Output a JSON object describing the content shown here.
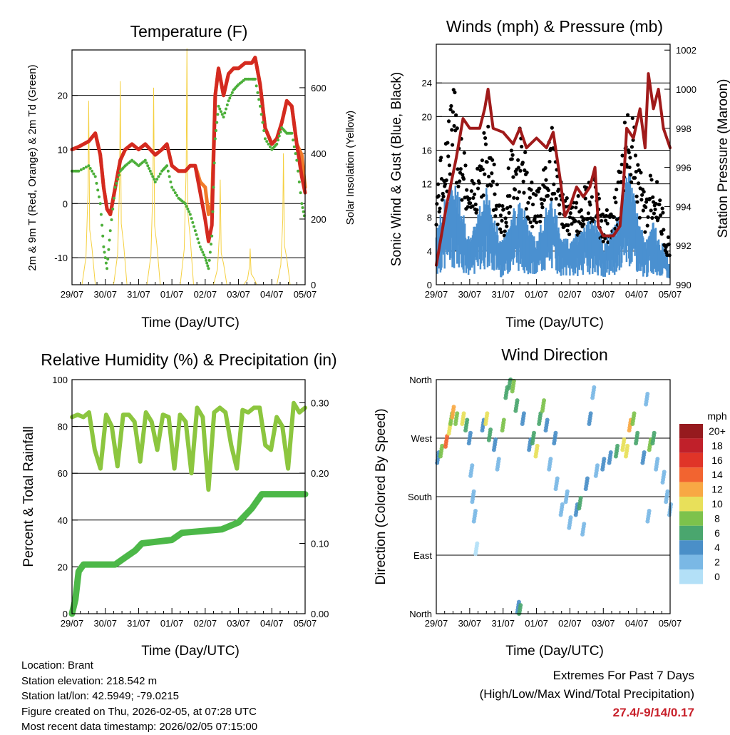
{
  "colors": {
    "t2m": "#d42a20",
    "t9m": "#f07a2a",
    "td": "#4caf3a",
    "solar": "#f5d040",
    "gust": "#000000",
    "wind": "#4a90d0",
    "pressure": "#a01a1a",
    "rh": "#8cc63f",
    "precip": "#4cb848",
    "extremes": "#c8202a"
  },
  "x_tick_labels": [
    "29/07",
    "30/07",
    "31/07",
    "01/07",
    "02/07",
    "03/07",
    "04/07",
    "05/07"
  ],
  "chart_data": [
    {
      "id": "temperature",
      "type": "line",
      "title": "Temperature (F)",
      "xlabel": "Time (Day/UTC)",
      "ylabel": "2m & 9m T (Red, Orange) & 2m Td (Green)",
      "ylabel_right": "Solar Insolation (Yellow)",
      "ylim": [
        -15,
        28.4
      ],
      "ylim_right": [
        0,
        715
      ],
      "yticks": [
        -10,
        0,
        10,
        20
      ],
      "yticks_right": [
        0,
        200,
        400,
        600
      ],
      "grid": true,
      "x": [
        0,
        0.2,
        0.5,
        0.7,
        0.85,
        0.95,
        1.05,
        1.15,
        1.3,
        1.45,
        1.6,
        1.8,
        2.0,
        2.2,
        2.35,
        2.5,
        2.7,
        2.85,
        3.0,
        3.2,
        3.4,
        3.55,
        3.7,
        3.85,
        4.0,
        4.1,
        4.2,
        4.3,
        4.4,
        4.55,
        4.7,
        4.85,
        5.0,
        5.2,
        5.4,
        5.5,
        5.65,
        5.8,
        6.0,
        6.15,
        6.3,
        6.45,
        6.6,
        6.75,
        6.9,
        7.0
      ],
      "series": [
        {
          "name": "2m T",
          "values": [
            10,
            10.5,
            11.5,
            13,
            9,
            3,
            -1,
            -2,
            3,
            8,
            10,
            11,
            10,
            11,
            10,
            9,
            10,
            11,
            7,
            6,
            6,
            7,
            7,
            2,
            -3,
            -7,
            -4,
            20,
            25,
            20,
            24,
            25,
            25,
            26,
            26,
            27,
            22,
            14,
            11,
            12,
            15,
            19,
            18,
            11,
            5,
            2
          ]
        },
        {
          "name": "9m T",
          "values": [
            10,
            10.5,
            11.5,
            13,
            9,
            3,
            -1,
            -2,
            3,
            8,
            10,
            11,
            10,
            11,
            10,
            9,
            10,
            11,
            7,
            6,
            6,
            7,
            7,
            4,
            3,
            -2,
            0,
            20,
            25,
            20,
            24,
            25,
            25,
            26,
            26,
            27,
            22,
            14,
            11,
            12,
            15,
            19,
            18,
            11,
            9,
            3
          ]
        },
        {
          "name": "2m Td",
          "values": [
            6,
            6,
            7,
            5,
            0,
            -8,
            -12,
            -5,
            3,
            6,
            7,
            8,
            7,
            8,
            6,
            4,
            6,
            7,
            3,
            1,
            0,
            -2,
            -5,
            -8,
            -10,
            -12,
            -6,
            12,
            18,
            16,
            19,
            21,
            22,
            23,
            23,
            23,
            18,
            12,
            10,
            11,
            14,
            13,
            13,
            8,
            0,
            -3
          ]
        },
        {
          "name": "Solar Insolation",
          "peak_days": [
            0.5,
            1.45,
            2.45,
            3.45,
            4.45,
            5.35,
            6.35
          ],
          "peak_values": [
            560,
            620,
            600,
            720,
            320,
            110,
            400
          ]
        }
      ]
    },
    {
      "id": "winds",
      "type": "scatter",
      "title": "Winds (mph) & Pressure (mb)",
      "xlabel": "Time (Day/UTC)",
      "ylabel": "Sonic Wind & Gust (Blue, Black)",
      "ylabel_right": "Station Pressure (Maroon)",
      "ylim": [
        0,
        28.6
      ],
      "ylim_right": [
        990,
        1002.3
      ],
      "yticks": [
        0,
        4,
        8,
        12,
        16,
        20,
        24
      ],
      "yticks_right": [
        990,
        992,
        994,
        996,
        998,
        1000,
        1002
      ],
      "grid": true,
      "x": [
        0,
        0.25,
        0.5,
        0.75,
        1.0,
        1.25,
        1.5,
        1.75,
        2.0,
        2.25,
        2.5,
        2.75,
        3.0,
        3.25,
        3.5,
        3.75,
        4.0,
        4.25,
        4.5,
        4.75,
        5.0,
        5.25,
        5.5,
        5.75,
        6.0,
        6.25,
        6.5,
        6.75,
        7.0
      ],
      "series": [
        {
          "name": "Gust",
          "values": [
            10,
            15,
            20,
            16,
            9,
            14,
            17,
            12,
            8,
            14,
            16,
            12,
            9,
            14,
            16,
            10,
            8,
            9,
            10,
            11,
            7,
            8,
            12,
            20,
            14,
            9,
            12,
            8,
            4
          ]
        },
        {
          "name": "Sonic Wind",
          "values": [
            5,
            8,
            10,
            8,
            4,
            7,
            9,
            6,
            4,
            7,
            8,
            6,
            4,
            7,
            8,
            5,
            4,
            5,
            6,
            6,
            4,
            5,
            7,
            11,
            7,
            4,
            6,
            4,
            2
          ]
        },
        {
          "name": "Station Pressure",
          "x": [
            0,
            0.3,
            0.6,
            0.8,
            1.0,
            1.3,
            1.45,
            1.55,
            1.7,
            2.0,
            2.3,
            2.5,
            2.7,
            3.0,
            3.3,
            3.5,
            3.7,
            3.85,
            4.0,
            4.2,
            4.4,
            4.6,
            4.75,
            4.85,
            5.0,
            5.3,
            5.5,
            5.6,
            5.7,
            5.9,
            6.1,
            6.25,
            6.35,
            6.5,
            6.65,
            6.8,
            7.0
          ],
          "values": [
            991,
            994,
            996.5,
            998.5,
            998,
            998,
            999,
            1000,
            998,
            997.8,
            997.2,
            998,
            997,
            997.5,
            997,
            997.8,
            995.5,
            993.5,
            994,
            995,
            994.5,
            995,
            996,
            993,
            992.5,
            992.5,
            993,
            995,
            998,
            997.5,
            999,
            997,
            1000.8,
            999,
            1000,
            998,
            997
          ]
        }
      ]
    },
    {
      "id": "humidity",
      "type": "line",
      "title": "Relative Humidity (%) & Precipitation (in)",
      "xlabel": "Time (Day/UTC)",
      "ylabel": "Percent & Total Rainfall",
      "ylim": [
        0,
        100
      ],
      "ylim_right": [
        0,
        0.333
      ],
      "yticks": [
        0,
        20,
        40,
        60,
        80,
        100
      ],
      "yticks_right": [
        0,
        0.1,
        0.2,
        0.3
      ],
      "yticks_right_labels": [
        "0.00",
        "0.10",
        "0.20",
        "0.30"
      ],
      "grid": true,
      "series": [
        {
          "name": "Relative Humidity",
          "values": [
            84,
            85,
            84,
            86,
            70,
            62,
            85,
            80,
            63,
            85,
            85,
            82,
            65,
            86,
            82,
            70,
            85,
            84,
            62,
            85,
            82,
            60,
            88,
            84,
            53,
            86,
            88,
            86,
            72,
            62,
            87,
            86,
            88,
            88,
            72,
            70,
            84,
            80,
            62,
            90,
            86,
            88
          ]
        },
        {
          "name": "Total Precipitation",
          "x": [
            0,
            0.1,
            0.2,
            0.35,
            1.3,
            1.6,
            1.9,
            2.1,
            3.0,
            3.3,
            4.5,
            5.0,
            5.4,
            5.55,
            5.7,
            7.0
          ],
          "values": [
            0,
            0.02,
            0.06,
            0.07,
            0.07,
            0.08,
            0.09,
            0.1,
            0.105,
            0.115,
            0.12,
            0.13,
            0.15,
            0.16,
            0.17,
            0.17
          ]
        }
      ]
    },
    {
      "id": "wind_direction",
      "type": "scatter",
      "title": "Wind Direction",
      "xlabel": "Time (Day/UTC)",
      "ylabel": "Direction (Colored By Speed)",
      "ylim": [
        0,
        360
      ],
      "yticks": [
        0,
        90,
        180,
        270,
        360
      ],
      "ytick_labels": [
        "North",
        "East",
        "South",
        "West",
        "North"
      ],
      "grid": true,
      "points": [
        [
          0.05,
          240,
          4
        ],
        [
          0.15,
          250,
          8
        ],
        [
          0.3,
          265,
          14
        ],
        [
          0.4,
          285,
          10
        ],
        [
          0.45,
          300,
          9
        ],
        [
          0.5,
          310,
          12
        ],
        [
          0.6,
          300,
          8
        ],
        [
          0.8,
          300,
          10
        ],
        [
          0.9,
          290,
          6
        ],
        [
          1.0,
          270,
          4
        ],
        [
          1.05,
          220,
          3
        ],
        [
          1.1,
          180,
          2
        ],
        [
          1.15,
          150,
          2
        ],
        [
          1.2,
          100,
          1
        ],
        [
          1.4,
          290,
          5
        ],
        [
          1.5,
          300,
          10
        ],
        [
          1.6,
          275,
          6
        ],
        [
          1.75,
          260,
          4
        ],
        [
          1.85,
          230,
          3
        ],
        [
          2.0,
          290,
          8
        ],
        [
          2.1,
          340,
          6
        ],
        [
          2.2,
          355,
          6
        ],
        [
          2.3,
          350,
          8
        ],
        [
          2.4,
          320,
          7
        ],
        [
          2.45,
          10,
          4
        ],
        [
          2.5,
          5,
          6
        ],
        [
          2.6,
          300,
          4
        ],
        [
          2.8,
          260,
          4
        ],
        [
          2.9,
          270,
          6
        ],
        [
          3.0,
          250,
          10
        ],
        [
          3.1,
          300,
          6
        ],
        [
          3.2,
          320,
          8
        ],
        [
          3.3,
          290,
          5
        ],
        [
          3.4,
          230,
          2
        ],
        [
          3.55,
          270,
          4
        ],
        [
          3.6,
          200,
          3
        ],
        [
          3.75,
          160,
          3
        ],
        [
          3.9,
          180,
          3
        ],
        [
          4.0,
          140,
          2
        ],
        [
          4.2,
          160,
          4
        ],
        [
          4.3,
          170,
          6
        ],
        [
          4.4,
          130,
          3
        ],
        [
          4.5,
          200,
          4
        ],
        [
          4.6,
          300,
          4
        ],
        [
          4.7,
          340,
          3
        ],
        [
          4.8,
          220,
          3
        ],
        [
          5.0,
          230,
          4
        ],
        [
          5.2,
          240,
          5
        ],
        [
          5.4,
          250,
          6
        ],
        [
          5.6,
          260,
          11
        ],
        [
          5.7,
          250,
          10
        ],
        [
          5.8,
          290,
          12
        ],
        [
          5.9,
          300,
          8
        ],
        [
          6.0,
          270,
          6
        ],
        [
          6.2,
          240,
          4
        ],
        [
          6.3,
          330,
          3
        ],
        [
          6.35,
          150,
          3
        ],
        [
          6.4,
          260,
          8
        ],
        [
          6.5,
          270,
          6
        ],
        [
          6.6,
          230,
          2
        ],
        [
          6.8,
          210,
          2
        ],
        [
          6.9,
          180,
          3
        ],
        [
          7.0,
          160,
          2
        ]
      ],
      "legend": {
        "title": "mph",
        "labels": [
          "20+",
          "18",
          "16",
          "14",
          "12",
          "10",
          "8",
          "6",
          "4",
          "2",
          "0"
        ],
        "colors": [
          "#961a1e",
          "#c0202a",
          "#e03428",
          "#f26430",
          "#f8a844",
          "#e8e05a",
          "#7dc24c",
          "#4aa66e",
          "#4a8fc8",
          "#7ab8e5",
          "#b3e0f7"
        ],
        "placement": "right"
      }
    }
  ],
  "info": {
    "location": "Location: Brant",
    "elevation": "Station elevation: 218.542 m",
    "latlon": "Station lat/lon: 42.5949; -79.0215",
    "created": "Figure created on Thu, 2026-02-05, at 07:28 UTC",
    "recent": "Most recent data timestamp: 2026/02/05 07:15:00"
  },
  "extremes": {
    "title": "Extremes For Past 7 Days",
    "subtitle": "(High/Low/Max Wind/Total Precipitation)",
    "values": "27.4/-9/14/0.17"
  }
}
